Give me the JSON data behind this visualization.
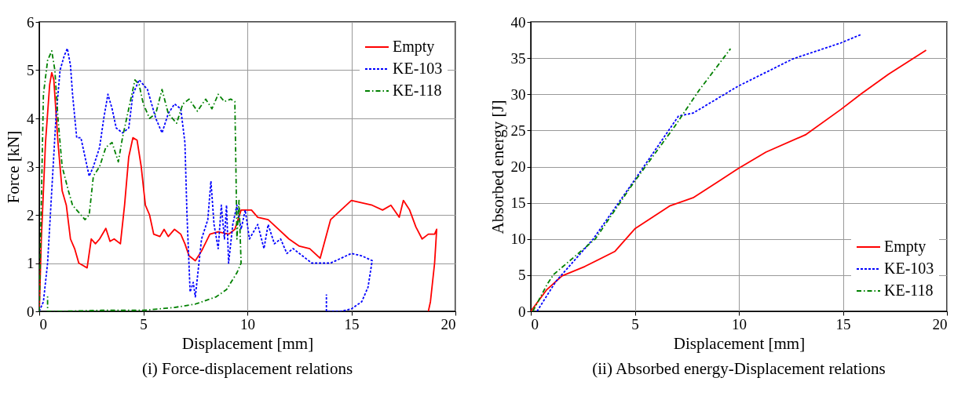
{
  "chart_data": [
    {
      "type": "line",
      "title": "(i) Force-displacement relations",
      "xlabel": "Displacement [mm]",
      "ylabel": "Force [kN]",
      "xlim": [
        0,
        20
      ],
      "xticks": [
        0,
        5,
        10,
        15,
        20
      ],
      "ylim": [
        0,
        6
      ],
      "yticks": [
        0,
        1,
        2,
        3,
        4,
        5,
        6
      ],
      "grid": true,
      "legend": "top right",
      "marker": "none",
      "series": [
        {
          "name": "Empty",
          "color": "#ff0000",
          "line_style": "solid",
          "x": [
            0,
            0.1,
            0.3,
            0.5,
            0.6,
            0.7,
            0.9,
            1.1,
            1.3,
            1.5,
            1.7,
            1.9,
            2.1,
            2.3,
            2.5,
            2.7,
            2.9,
            3.2,
            3.4,
            3.6,
            3.9,
            4.1,
            4.3,
            4.5,
            4.7,
            4.9,
            5.1,
            5.3,
            5.5,
            5.8,
            6.0,
            6.2,
            6.5,
            6.8,
            7.0,
            7.2,
            7.5,
            7.8,
            8.2,
            8.6,
            9.1,
            9.4,
            9.7,
            10.2,
            10.5,
            11,
            11.5,
            12,
            12.5,
            13,
            13.5,
            14,
            14.5,
            15,
            15.5,
            16,
            16.5,
            16.9,
            17.3,
            17.5,
            17.8,
            18.1,
            18.4,
            18.7,
            19.0,
            19.1,
            19.0,
            18.8,
            18.7
          ],
          "values": [
            0,
            1.5,
            3.5,
            4.7,
            4.95,
            4.8,
            3.5,
            2.5,
            2.2,
            1.5,
            1.3,
            1.0,
            0.95,
            0.9,
            1.5,
            1.4,
            1.5,
            1.72,
            1.45,
            1.5,
            1.4,
            2.2,
            3.2,
            3.6,
            3.55,
            3.0,
            2.2,
            2.0,
            1.6,
            1.55,
            1.7,
            1.55,
            1.7,
            1.6,
            1.4,
            1.15,
            1.05,
            1.25,
            1.6,
            1.65,
            1.6,
            1.7,
            2.1,
            2.1,
            1.95,
            1.9,
            1.7,
            1.5,
            1.35,
            1.3,
            1.1,
            1.9,
            2.1,
            2.3,
            2.25,
            2.2,
            2.1,
            2.2,
            1.95,
            2.3,
            2.1,
            1.75,
            1.5,
            1.6,
            1.6,
            1.7,
            1.0,
            0.2,
            0
          ]
        },
        {
          "name": "KE-103",
          "color": "#0000ff",
          "line_style": "dotted",
          "x": [
            0,
            0.2,
            0.4,
            0.6,
            0.8,
            1.0,
            1.2,
            1.35,
            1.5,
            1.6,
            1.8,
            2.0,
            2.2,
            2.4,
            2.6,
            2.9,
            3.1,
            3.3,
            3.5,
            3.7,
            4.0,
            4.3,
            4.5,
            4.8,
            5.2,
            5.6,
            5.9,
            6.2,
            6.5,
            6.8,
            7.0,
            7.1,
            7.25,
            7.4,
            7.5,
            7.8,
            8.1,
            8.25,
            8.4,
            8.6,
            8.75,
            8.9,
            9.0,
            9.1,
            9.3,
            9.5,
            9.7,
            9.9,
            10.1,
            10.5,
            10.8,
            11,
            11.3,
            11.6,
            11.9,
            12.2,
            12.5,
            12.8,
            13.1,
            13.5,
            14,
            14.5,
            15,
            15.5,
            16,
            15.8,
            15.5,
            15,
            14.5,
            13.8,
            13.8
          ],
          "values": [
            0,
            0.2,
            1.0,
            2.5,
            4.0,
            5.0,
            5.3,
            5.45,
            5.1,
            4.5,
            3.6,
            3.6,
            3.2,
            2.8,
            3.0,
            3.4,
            4.0,
            4.5,
            4.2,
            3.8,
            3.7,
            3.8,
            4.5,
            4.8,
            4.6,
            4.0,
            3.7,
            4.1,
            4.3,
            4.2,
            3.5,
            2.0,
            0.4,
            0.6,
            0.3,
            1.5,
            1.9,
            2.7,
            1.8,
            1.3,
            2.2,
            1.5,
            2.2,
            1.0,
            1.8,
            2.2,
            1.7,
            2.1,
            1.5,
            1.8,
            1.3,
            1.8,
            1.4,
            1.5,
            1.2,
            1.3,
            1.2,
            1.1,
            1.0,
            1.0,
            1.0,
            1.1,
            1.2,
            1.15,
            1.05,
            0.5,
            0.2,
            0.05,
            0,
            0,
            0.35
          ]
        },
        {
          "name": "KE-118",
          "color": "#008000",
          "line_style": "dashdot",
          "x": [
            0,
            0.2,
            0.4,
            0.6,
            0.75,
            0.9,
            1.1,
            1.4,
            1.6,
            1.8,
            2.0,
            2.2,
            2.4,
            2.6,
            2.9,
            3.2,
            3.5,
            3.8,
            4.0,
            4.3,
            4.6,
            4.8,
            5.0,
            5.3,
            5.6,
            5.9,
            6.2,
            6.6,
            6.9,
            7.2,
            7.6,
            8.0,
            8.3,
            8.6,
            8.9,
            9.2,
            9.4,
            9.45,
            9.5,
            9.6,
            9.7,
            9.5,
            9.0,
            8.5,
            7.5,
            6.5,
            5,
            3,
            1,
            0.4,
            0.4
          ],
          "values": [
            0,
            4.5,
            5.2,
            5.4,
            5.0,
            4.0,
            3.0,
            2.5,
            2.2,
            2.1,
            2.0,
            1.9,
            2.0,
            2.8,
            3.0,
            3.4,
            3.5,
            3.1,
            3.6,
            4.2,
            4.8,
            4.7,
            4.3,
            4.0,
            4.1,
            4.6,
            4.1,
            3.9,
            4.3,
            4.4,
            4.15,
            4.4,
            4.2,
            4.5,
            4.35,
            4.4,
            4.35,
            3.0,
            1.5,
            2.3,
            1.0,
            0.8,
            0.45,
            0.3,
            0.15,
            0.08,
            0.02,
            0.02,
            0,
            0,
            0.35
          ]
        }
      ]
    },
    {
      "type": "line",
      "title": "(ii) Absorbed energy-Displacement relations",
      "xlabel": "Displacement [mm]",
      "ylabel": "Absorbed energy [J]",
      "xlim": [
        0,
        20
      ],
      "xticks": [
        0,
        5,
        10,
        15,
        20
      ],
      "ylim": [
        0,
        40
      ],
      "yticks": [
        0,
        5,
        10,
        15,
        20,
        25,
        30,
        35,
        40
      ],
      "grid": true,
      "legend": "bottom right",
      "marker": "none",
      "series": [
        {
          "name": "Empty",
          "color": "#ff0000",
          "line_style": "solid",
          "x": [
            0,
            0.77,
            1.5,
            2.6,
            4.05,
            5.0,
            6.7,
            7.8,
            9.1,
            9.95,
            11.3,
            13.2,
            14.9,
            15.9,
            17.2,
            19.0
          ],
          "values": [
            0,
            3.0,
            4.9,
            6.2,
            8.3,
            11.4,
            14.6,
            15.7,
            18.1,
            19.7,
            22.0,
            24.4,
            27.9,
            30.1,
            32.8,
            36.1
          ]
        },
        {
          "name": "KE-103",
          "color": "#0000ff",
          "line_style": "dotted",
          "x": [
            0.3,
            1.2,
            3.0,
            5.0,
            7.1,
            7.8,
            9.95,
            12.6,
            14.9,
            15.9
          ],
          "values": [
            0,
            4.1,
            10.0,
            18.2,
            27.0,
            27.4,
            31.1,
            34.9,
            37.1,
            38.3
          ]
        },
        {
          "name": "KE-118",
          "color": "#008000",
          "line_style": "dashdot",
          "x": [
            0.1,
            0.8,
            1.1,
            3.1,
            4.9,
            6.9,
            8.1,
            9.6
          ],
          "values": [
            0,
            3.8,
            5.1,
            10.0,
            17.6,
            25.5,
            30.6,
            36.3
          ]
        }
      ]
    }
  ]
}
